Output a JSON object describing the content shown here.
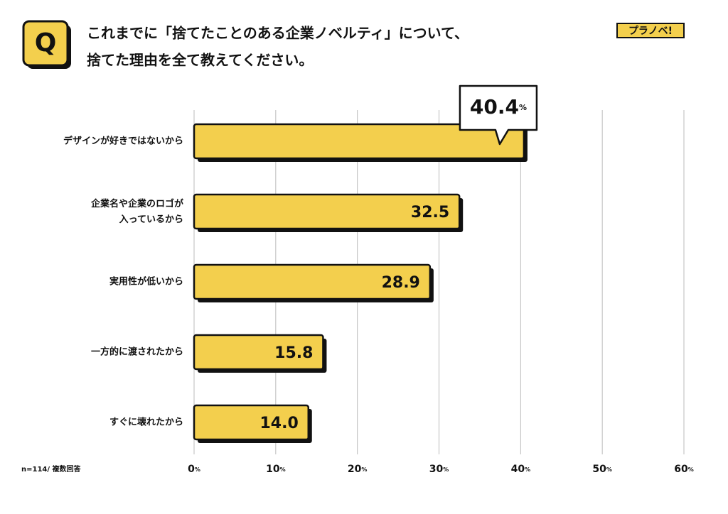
{
  "header": {
    "icon": "Q",
    "title_lines": [
      "これまでに「捨てたことのある企業ノベルティ」について、",
      "捨てた理由を全て教えてください。"
    ],
    "logo": "プラノベ!"
  },
  "note": "n=114/ 複数回答",
  "chart_data": {
    "type": "bar",
    "orientation": "horizontal",
    "categories": [
      "デザインが好きではないから",
      "企業名や企業のロゴが\n入っているから",
      "実用性が低いから",
      "一方的に渡されたから",
      "すぐに壊れたから"
    ],
    "values": [
      40.4,
      32.5,
      28.9,
      15.8,
      14.0
    ],
    "value_labels": [
      "40.4%",
      "32.5",
      "28.9",
      "15.8",
      "14.0"
    ],
    "color": "#f3cf4d",
    "xlim": [
      0,
      60
    ],
    "xticks": [
      {
        "value": 0,
        "label": "0%"
      },
      {
        "value": 10,
        "label": "10%"
      },
      {
        "value": 20,
        "label": "20%"
      },
      {
        "value": 30,
        "label": "30%"
      },
      {
        "value": 40,
        "label": "40%"
      },
      {
        "value": 50,
        "label": "50%"
      },
      {
        "value": 60,
        "label": "60%"
      }
    ],
    "grid": true
  }
}
